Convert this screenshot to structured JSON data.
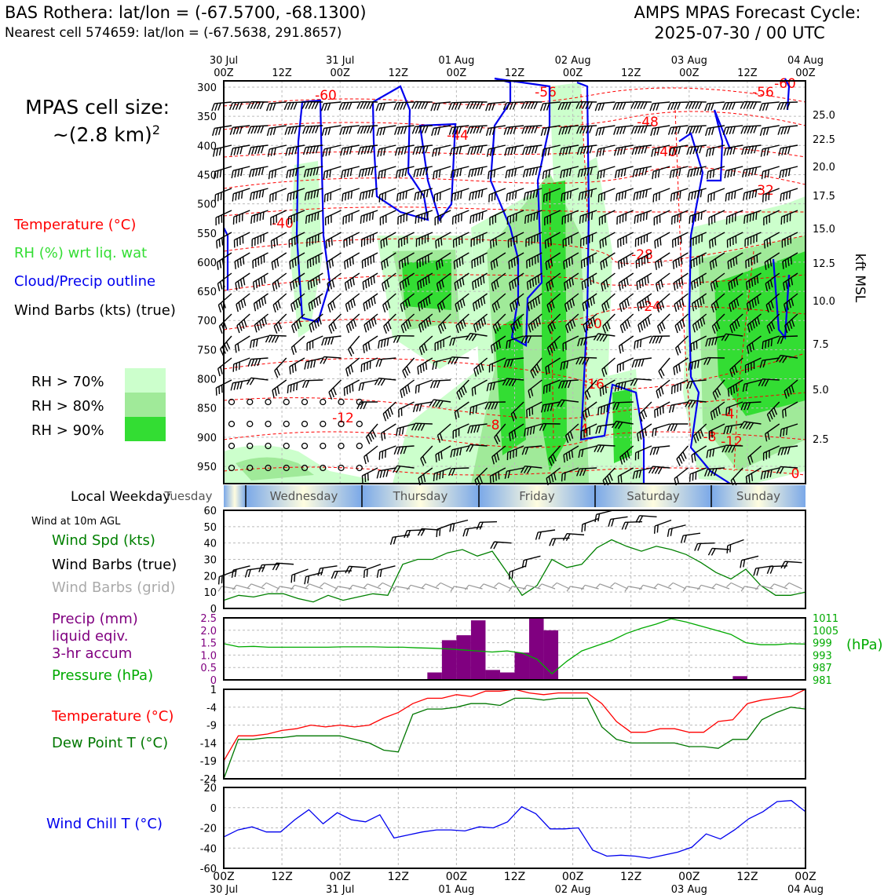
{
  "header": {
    "station": "BAS Rothera: lat/lon = (-67.5700, -68.1300)",
    "nearest": "Nearest cell 574659: lat/lon = (-67.5638, 291.8657)",
    "cycle_title": "AMPS MPAS Forecast Cycle:",
    "cycle_time": "2025-07-30 / 00 UTC"
  },
  "cell_size": {
    "line1": "MPAS cell size:",
    "line2": "~(2.8 km)",
    "exp": "2"
  },
  "legend": {
    "temperature": "Temperature (°C)",
    "rh": "RH (%) wrt liq. wat",
    "cloud": "Cloud/Precip outline",
    "barbs": "Wind Barbs (kts) (true)",
    "rh70": "RH > 70%",
    "rh80": "RH > 80%",
    "rh90": "RH > 90%",
    "colors": {
      "rh70": "#ccffcc",
      "rh80": "#a0ea99",
      "rh90": "#33dd33",
      "temp": "#ff0000",
      "cloud": "#0000ee"
    }
  },
  "time_axis": {
    "labels": [
      "00Z",
      "12Z",
      "00Z",
      "12Z",
      "00Z",
      "12Z",
      "00Z",
      "12Z",
      "00Z",
      "12Z",
      "00Z"
    ],
    "dates": [
      "30 Jul",
      "31 Jul",
      "01 Aug",
      "02 Aug",
      "03 Aug",
      "04 Aug"
    ]
  },
  "weekday": {
    "label": "Local Weekday",
    "days": [
      "Tuesday",
      "Wednesday",
      "Thursday",
      "Friday",
      "Saturday",
      "Sunday"
    ]
  },
  "panels": {
    "wind": {
      "title": "Wind at 10m AGL",
      "spd": "Wind Spd (kts)",
      "barbs_true": "Wind Barbs (true)",
      "barbs_grid": "Wind Barbs (grid)"
    },
    "precip": {
      "l1": "Precip (mm)",
      "l2": "liquid eqiv.",
      "l3": "3-hr accum",
      "pressure": "Pressure (hPa)",
      "units": "(hPa)"
    },
    "temp": {
      "t": "Temperature (°C)",
      "td": "Dew Point T (°C)"
    },
    "chill": {
      "label": "Wind Chill T (°C)"
    }
  },
  "chart_data": [
    {
      "type": "heatmap",
      "title": "",
      "ylabel_left": "",
      "ylabel_right": "kft MSL",
      "y_pressure_ticks": [
        300,
        350,
        400,
        450,
        500,
        550,
        600,
        650,
        700,
        750,
        800,
        850,
        900,
        950
      ],
      "y_height_ticks": [
        "25.0",
        "22.5",
        "20.0",
        "17.5",
        "15.0",
        "12.5",
        "10.0",
        "7.5",
        "5.0",
        "2.5"
      ],
      "temperature_contour_labels": [
        "-60",
        "-56",
        "-60",
        "-56",
        "-48",
        "-44",
        "-40",
        "-32",
        "-28",
        "-24",
        "-20",
        "-16",
        "-12",
        "-8",
        "-4",
        "-4",
        "-8",
        "-12",
        "0",
        "-40"
      ],
      "notes_ylim_hpa": [
        300,
        985
      ]
    },
    {
      "type": "line",
      "title": "",
      "ylim": [
        0,
        60
      ],
      "yticks": [
        0,
        10,
        20,
        30,
        40,
        50,
        60
      ],
      "series": [
        {
          "name": "Wind Spd (kts)",
          "color": "#008000",
          "values": [
            5,
            8,
            7,
            9,
            9,
            6,
            4,
            8,
            5,
            7,
            9,
            8,
            27,
            30,
            30,
            34,
            36,
            32,
            35,
            22,
            8,
            14,
            30,
            25,
            27,
            37,
            42,
            38,
            35,
            38,
            36,
            33,
            28,
            22,
            18,
            24,
            14,
            8,
            8,
            10
          ]
        }
      ]
    },
    {
      "type": "bar",
      "title": "",
      "ylim": [
        0,
        2.5
      ],
      "yticks": [
        "0",
        "0.5",
        "1.0",
        "1.5",
        "2.0",
        "2.5"
      ],
      "y2ticks": [
        "981",
        "987",
        "993",
        "999",
        "1005",
        "1011"
      ],
      "y2lim": [
        981,
        1011
      ],
      "series": [
        {
          "name": "Precip (mm)",
          "color": "#800080",
          "values": [
            0,
            0,
            0,
            0,
            0,
            0,
            0,
            0,
            0,
            0,
            0,
            0,
            0,
            0,
            0.3,
            1.6,
            1.8,
            2.4,
            0.4,
            0.3,
            1.1,
            2.5,
            2.0,
            0,
            0,
            0,
            0,
            0,
            0,
            0,
            0,
            0,
            0,
            0,
            0,
            0.15,
            0,
            0,
            0,
            0
          ]
        },
        {
          "name": "Pressure (hPa)",
          "color": "#00aa00",
          "values": [
            998.5,
            997,
            997.2,
            996.8,
            996.8,
            996.8,
            996.8,
            996.8,
            997,
            997,
            997,
            996.8,
            996.8,
            996.5,
            996.3,
            996,
            995.5,
            995,
            994.5,
            995,
            994,
            991,
            984,
            990,
            995,
            997.5,
            1000,
            1003.5,
            1006,
            1008,
            1010.5,
            1009,
            1007,
            1005,
            1003,
            999,
            998,
            998,
            998.5,
            998.3
          ]
        }
      ]
    },
    {
      "type": "line",
      "title": "",
      "ylim": [
        -24,
        1
      ],
      "yticks": [
        "1",
        "-4",
        "-9",
        "-14",
        "-19",
        "-24"
      ],
      "series": [
        {
          "name": "Temperature (°C)",
          "color": "#ff0000",
          "values": [
            -19,
            -12,
            -12,
            -11.5,
            -10.5,
            -10,
            -9,
            -9.5,
            -9,
            -9.5,
            -9,
            -7,
            -5.5,
            -3,
            -1.5,
            -1.5,
            -0.5,
            -1,
            0.5,
            0.5,
            1,
            0,
            -0.5,
            0,
            0,
            0,
            -3,
            -8,
            -11,
            -11,
            -10,
            -10,
            -11,
            -11,
            -8,
            -7.5,
            -3,
            -2,
            -1.5,
            -1,
            1
          ]
        },
        {
          "name": "Dew Point T (°C)",
          "color": "#007700",
          "values": [
            -24,
            -13,
            -13,
            -12.5,
            -12.5,
            -12,
            -12,
            -12,
            -12,
            -13,
            -14,
            -16,
            -16.5,
            -6,
            -4.5,
            -4.5,
            -4,
            -3,
            -3,
            -3.5,
            -1.5,
            -1.5,
            -2,
            -1.5,
            -1.5,
            -1.5,
            -9.5,
            -13,
            -14,
            -14,
            -14,
            -14,
            -15,
            -15,
            -15.5,
            -13,
            -13,
            -7.5,
            -5.5,
            -4,
            -4.5
          ]
        }
      ]
    },
    {
      "type": "line",
      "title": "",
      "ylim": [
        -60,
        20
      ],
      "yticks": [
        "20",
        "0",
        "-20",
        "-40",
        "-60"
      ],
      "series": [
        {
          "name": "Wind Chill T (°C)",
          "color": "#0000ee",
          "values": [
            -29,
            -22,
            -19,
            -24,
            -24,
            -12,
            -2,
            -16,
            -5,
            -12,
            -14,
            -7,
            -30,
            -27,
            -24,
            -22,
            -22,
            -23,
            -19,
            -20,
            -14,
            1,
            -6,
            -21,
            -21,
            -20,
            -42,
            -48,
            -47,
            -48,
            -50,
            -47,
            -44,
            -39,
            -26,
            -31,
            -22,
            -11,
            -4,
            6,
            7,
            -4
          ]
        }
      ]
    }
  ]
}
